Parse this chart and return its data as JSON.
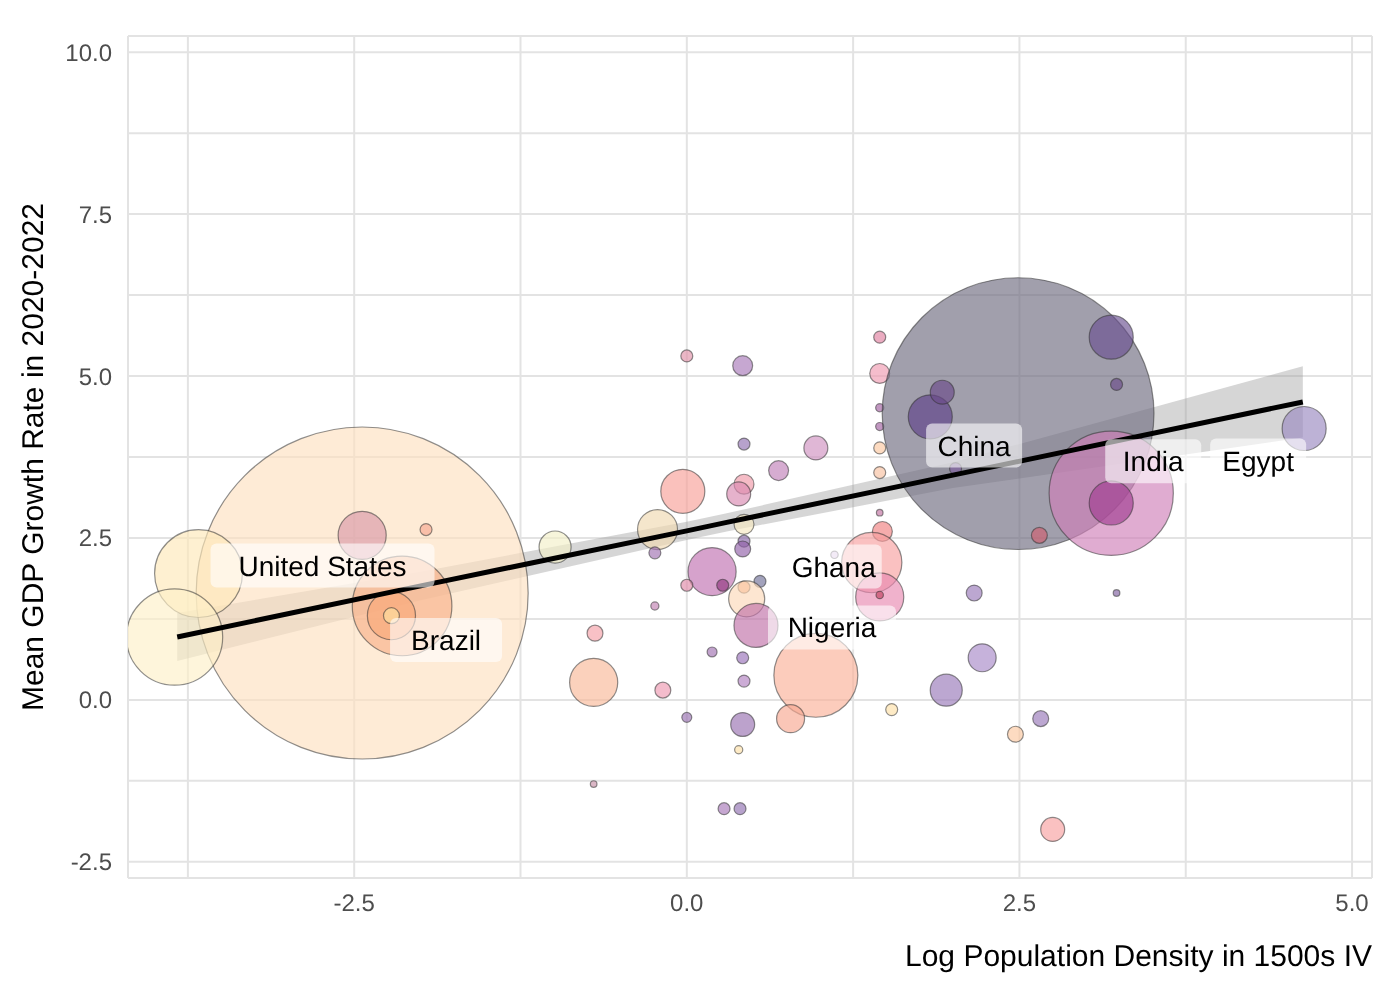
{
  "chart_data": {
    "type": "bubble",
    "xlabel": "Log Population Density in 1500s IV",
    "ylabel": "Mean GDP Growth Rate in 2020-2022",
    "xlim": [
      -4.2,
      5.15
    ],
    "ylim": [
      -2.75,
      10.25
    ],
    "xticks": [
      {
        "value": -3.75,
        "label": null
      },
      {
        "value": -2.5,
        "label": "-2.5"
      },
      {
        "value": -1.25,
        "label": null
      },
      {
        "value": 0,
        "label": "0.0"
      },
      {
        "value": 1.25,
        "label": null
      },
      {
        "value": 2.5,
        "label": "2.5"
      },
      {
        "value": 3.75,
        "label": null
      },
      {
        "value": 5,
        "label": "5.0"
      }
    ],
    "yticks": [
      {
        "value": -2.5,
        "label": "-2.5"
      },
      {
        "value": -1.25,
        "label": null
      },
      {
        "value": 0,
        "label": "0.0"
      },
      {
        "value": 1.25,
        "label": null
      },
      {
        "value": 2.5,
        "label": "2.5"
      },
      {
        "value": 3.75,
        "label": null
      },
      {
        "value": 5,
        "label": "5.0"
      },
      {
        "value": 6.25,
        "label": null
      },
      {
        "value": 7.5,
        "label": "7.5"
      },
      {
        "value": 8.75,
        "label": null
      },
      {
        "value": 10,
        "label": "10.0"
      }
    ],
    "grid": true,
    "series": [
      {
        "x": [
          -2.44,
          -3.67,
          -3.85,
          -2.44,
          -1.96,
          -2.14,
          -2.22,
          -2.22,
          -0.99,
          -0.69,
          -0.7,
          -0.7,
          -0.22,
          -0.24,
          -0.03,
          0,
          -0.24,
          -0.18,
          0,
          0.19,
          0,
          0.19,
          0.28,
          0.42,
          0.43,
          0.97,
          0.69,
          0.43,
          0.39,
          0.43,
          0.43,
          0.42,
          0.27,
          0.43,
          0.55,
          0.45,
          0.52,
          0.42,
          0.43,
          0.97,
          0.78,
          0.42,
          0.39,
          0.4,
          1.45,
          1.45,
          1.45,
          1.45,
          1.45,
          1.45,
          1.45,
          1.47,
          1.39,
          1.45,
          1.45,
          1.54,
          1.95,
          1.11,
          2.49,
          3.19,
          3.23,
          1.83,
          1.92,
          2.02,
          3.19,
          3.19,
          2.65,
          4.64,
          2.16,
          3.23,
          2.22,
          2.66,
          2.47,
          2.75
        ],
        "values": [
          1.65,
          1.95,
          0.97,
          2.54,
          2.63,
          1.45,
          1.3,
          1.3,
          2.36,
          1.03,
          0.27,
          -1.3,
          2.63,
          2.27,
          3.22,
          5.31,
          1.45,
          0.15,
          -0.27,
          1.98,
          1.77,
          0.74,
          -1.68,
          5.16,
          3.95,
          3.89,
          3.54,
          3.33,
          3.18,
          2.71,
          2.45,
          2.33,
          1.77,
          1.74,
          1.83,
          1.56,
          1.15,
          0.65,
          0.29,
          0.38,
          -0.29,
          -0.38,
          -0.77,
          -1.68,
          5.6,
          5.04,
          4.51,
          4.22,
          3.89,
          3.51,
          2.89,
          2.6,
          2.12,
          1.59,
          1.62,
          -0.15,
          0.15,
          2.24,
          4.42,
          5.6,
          4.87,
          4.37,
          4.75,
          3.57,
          3.19,
          3.04,
          2.54,
          4.19,
          1.65,
          1.65,
          0.65,
          -0.29,
          -0.53,
          -2.0
        ],
        "sizes": [
          1,
          0.07,
          0.084,
          0.021,
          0.0013,
          0.09,
          0.021,
          0.0023,
          0.0093,
          0.0023,
          0.021,
          0.0004,
          0.0145,
          0.0013,
          0.0176,
          0.0013,
          0.0006,
          0.0023,
          0.0009,
          0.021,
          0.0013,
          0.0009,
          0.0013,
          0.0036,
          0.0013,
          0.0052,
          0.0036,
          0.0036,
          0.0052,
          0.0036,
          0.0013,
          0.0023,
          0.0013,
          0.0013,
          0.0013,
          0.0118,
          0.0176,
          0.0013,
          0.0013,
          0.064,
          0.0071,
          0.0052,
          0.0006,
          0.0013,
          0.0013,
          0.0036,
          0.0006,
          0.0006,
          0.0013,
          0.0013,
          0.0004,
          0.0036,
          0.033,
          0.021,
          0.0005,
          0.0013,
          0.0093,
          0.0005,
          0.67,
          0.0176,
          0.0013,
          0.0176,
          0.0052,
          0.0013,
          0.14,
          0.0176,
          0.0023,
          0.0176,
          0.0023,
          0.0004,
          0.0071,
          0.0023,
          0.0023,
          0.0052
        ],
        "colors": [
          "#fde0c0",
          "#fde8b8",
          "#fdf0c8",
          "#d898a8",
          "#f6a890",
          "#f8b088",
          "#f9a878",
          "#fde0a0",
          "#f2f0c8",
          "#f4a0a8",
          "#f9b898",
          "#c890a8",
          "#f0d8b0",
          "#a070b0",
          "#f7a098",
          "#e090a8",
          "#c080b0",
          "#ee98b0",
          "#9870b0",
          "#c070b0",
          "#e088a8",
          "#a070b0",
          "#a878b8",
          "#a878b8",
          "#9070b0",
          "#d090c0",
          "#c080b8",
          "#f098a8",
          "#d888b0",
          "#f6e8c0",
          "#8868a8",
          "#9060a8",
          "#903880",
          "#f4a070",
          "#707098",
          "#fcd8b8",
          "#c070a8",
          "#9870b8",
          "#b080c0",
          "#fbb098",
          "#f8a890",
          "#9870b0",
          "#fde0a8",
          "#9070b0",
          "#e080a0",
          "#f09ab0",
          "#a060a0",
          "#a060a0",
          "#fcc8a0",
          "#f8c0a0",
          "#c070a0",
          "#f08080",
          "#f8a0a0",
          "#e888b0",
          "#c04060",
          "#fde0a8",
          "#9878b8",
          "#d0b0e0",
          "#6e6c80",
          "#6a5090",
          "#6a4c88",
          "#5e4088",
          "#6a4a88",
          "#8060a0",
          "#d080b8",
          "#a03c90",
          "#d06070",
          "#9a88c0",
          "#9878b8",
          "#8060a0",
          "#a888c8",
          "#9878b8",
          "#fcc8a0",
          "#f8a0a0"
        ]
      },
      {
        "type": "line",
        "color": "#000000",
        "x": [
          -3.83,
          -2,
          0,
          0.3,
          2,
          4.63
        ],
        "values": [
          0.97,
          1.76,
          2.61,
          2.74,
          3.47,
          4.6
        ],
        "lower": [
          0.6,
          1.54,
          2.47,
          2.6,
          3.27,
          4.05
        ],
        "upper": [
          1.34,
          1.98,
          2.75,
          2.88,
          3.67,
          5.15
        ]
      }
    ],
    "annotations": [
      {
        "text": "United States",
        "x": -3.67,
        "y": 1.95
      },
      {
        "text": "Brazil",
        "x": -2.14,
        "y": 1.45
      },
      {
        "text": "Ghana",
        "x": 1.39,
        "y": 2.12
      },
      {
        "text": "Nigeria",
        "x": 0.52,
        "y": 1.15
      },
      {
        "text": "China",
        "x": 2.49,
        "y": 4.42
      },
      {
        "text": "India",
        "x": 3.19,
        "y": 3.19
      },
      {
        "text": "Egypt",
        "x": 4.64,
        "y": 4.19
      }
    ]
  }
}
